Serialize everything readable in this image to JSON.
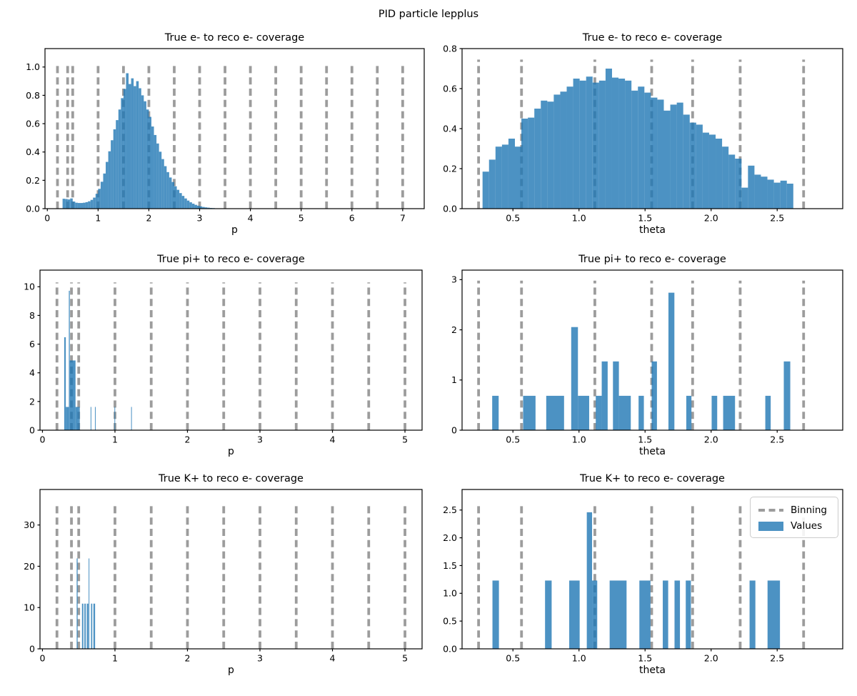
{
  "figure": {
    "suptitle": "PID particle lepplus",
    "background": "#ffffff",
    "bar_color": "#1f77b4",
    "bar_opacity": 0.8,
    "binning_color": "#9c9c9c",
    "axis_color": "#000000"
  },
  "legend": {
    "position": "upper-right of bottom-right subplot",
    "items": [
      {
        "label": "Binning",
        "swatch": "dashed-line",
        "color": "#9c9c9c"
      },
      {
        "label": "Values",
        "swatch": "filled-patch",
        "color": "#4c92c3"
      }
    ]
  },
  "chart_data": [
    {
      "type": "bar",
      "title": "True e- to reco e- coverage",
      "xlabel": "p",
      "xlim": [
        -0.046,
        7.424
      ],
      "ylim": [
        0,
        1.13
      ],
      "xticks": [
        [
          0,
          "0"
        ],
        [
          1,
          "1"
        ],
        [
          2,
          "2"
        ],
        [
          3,
          "3"
        ],
        [
          4,
          "4"
        ],
        [
          5,
          "5"
        ],
        [
          6,
          "6"
        ],
        [
          7,
          "7"
        ]
      ],
      "yticks": [
        [
          0,
          "0.0"
        ],
        [
          0.2,
          "0.2"
        ],
        [
          0.4,
          "0.4"
        ],
        [
          0.6,
          "0.6"
        ],
        [
          0.8,
          "0.8"
        ],
        [
          1.0,
          "1.0"
        ]
      ],
      "binning": [
        0.2,
        0.4,
        0.5,
        1.0,
        1.5,
        2.0,
        2.5,
        3.0,
        3.5,
        4.0,
        4.5,
        5.0,
        5.5,
        6.0,
        6.5,
        7.0
      ],
      "dash_top": 1.02,
      "grid": false,
      "bars": {
        "mode": "hist",
        "start": 0.3,
        "binwidth": 0.05,
        "heights": [
          0.07,
          0.068,
          0.065,
          0.072,
          0.05,
          0.042,
          0.04,
          0.04,
          0.042,
          0.046,
          0.052,
          0.062,
          0.078,
          0.105,
          0.14,
          0.19,
          0.248,
          0.33,
          0.405,
          0.483,
          0.56,
          0.625,
          0.7,
          0.78,
          0.845,
          0.956,
          0.88,
          0.92,
          0.865,
          0.9,
          0.85,
          0.8,
          0.758,
          0.7,
          0.648,
          0.58,
          0.52,
          0.46,
          0.402,
          0.35,
          0.3,
          0.258,
          0.22,
          0.188,
          0.158,
          0.133,
          0.11,
          0.09,
          0.072,
          0.057,
          0.045,
          0.035,
          0.027,
          0.021,
          0.016,
          0.012,
          0.009,
          0.007,
          0.005,
          0.004
        ]
      }
    },
    {
      "type": "bar",
      "title": "True e- to reco e- coverage",
      "xlabel": "theta",
      "xlim": [
        0.115,
        2.996
      ],
      "ylim": [
        0,
        0.8
      ],
      "xticks": [
        [
          0.5,
          "0.5"
        ],
        [
          1.0,
          "1.0"
        ],
        [
          1.5,
          "1.5"
        ],
        [
          2.0,
          "2.0"
        ],
        [
          2.5,
          "2.5"
        ]
      ],
      "yticks": [
        [
          0,
          "0.0"
        ],
        [
          0.2,
          "0.2"
        ],
        [
          0.4,
          "0.4"
        ],
        [
          0.6,
          "0.6"
        ],
        [
          0.8,
          "0.8"
        ]
      ],
      "binning": [
        0.24,
        0.565,
        1.12,
        1.55,
        1.86,
        2.22,
        2.7
      ],
      "dash_top": 0.745,
      "grid": false,
      "bars": {
        "mode": "hist",
        "start": 0.27,
        "binwidth": 0.049,
        "heights": [
          0.185,
          0.245,
          0.31,
          0.32,
          0.35,
          0.31,
          0.45,
          0.455,
          0.5,
          0.54,
          0.535,
          0.57,
          0.585,
          0.61,
          0.65,
          0.64,
          0.66,
          0.63,
          0.64,
          0.7,
          0.655,
          0.65,
          0.64,
          0.59,
          0.61,
          0.58,
          0.555,
          0.545,
          0.49,
          0.52,
          0.53,
          0.47,
          0.43,
          0.42,
          0.38,
          0.37,
          0.35,
          0.31,
          0.27,
          0.25,
          0.105,
          0.215,
          0.17,
          0.16,
          0.145,
          0.13,
          0.14,
          0.125
        ]
      }
    },
    {
      "type": "bar",
      "title": "True pi+ to reco e- coverage",
      "xlabel": "p",
      "xlim": [
        -0.034,
        5.236
      ],
      "ylim": [
        0,
        11.16
      ],
      "xticks": [
        [
          0,
          "0"
        ],
        [
          1,
          "1"
        ],
        [
          2,
          "2"
        ],
        [
          3,
          "3"
        ],
        [
          4,
          "4"
        ],
        [
          5,
          "5"
        ]
      ],
      "yticks": [
        [
          0,
          "0"
        ],
        [
          2,
          "2"
        ],
        [
          4,
          "4"
        ],
        [
          6,
          "6"
        ],
        [
          8,
          "8"
        ],
        [
          10,
          "10"
        ]
      ],
      "binning": [
        0.2,
        0.4,
        0.5,
        1.0,
        1.5,
        2.0,
        2.5,
        3.0,
        3.5,
        4.0,
        4.5,
        5.0
      ],
      "dash_top": 10.3,
      "grid": false,
      "bars": {
        "mode": "list",
        "items": [
          [
            0.3,
            0.022,
            6.48
          ],
          [
            0.322,
            0.042,
            1.62
          ],
          [
            0.364,
            0.013,
            9.72
          ],
          [
            0.377,
            0.079,
            4.86
          ],
          [
            0.456,
            0.045,
            1.62
          ],
          [
            0.501,
            0.014,
            1.62
          ],
          [
            0.664,
            0.01,
            1.62
          ],
          [
            0.724,
            0.01,
            1.62
          ],
          [
            0.993,
            0.01,
            1.62
          ],
          [
            1.223,
            0.01,
            1.62
          ]
        ]
      }
    },
    {
      "type": "bar",
      "title": "True pi+ to reco e- coverage",
      "xlabel": "theta",
      "xlim": [
        0.115,
        2.996
      ],
      "ylim": [
        0,
        3.19
      ],
      "xticks": [
        [
          0.5,
          "0.5"
        ],
        [
          1.0,
          "1.0"
        ],
        [
          1.5,
          "1.5"
        ],
        [
          2.0,
          "2.0"
        ],
        [
          2.5,
          "2.5"
        ]
      ],
      "yticks": [
        [
          0,
          "0"
        ],
        [
          1,
          "1"
        ],
        [
          2,
          "2"
        ],
        [
          3,
          "3"
        ]
      ],
      "binning": [
        0.24,
        0.565,
        1.12,
        1.55,
        1.86,
        2.22,
        2.7
      ],
      "dash_top": 2.98,
      "grid": false,
      "bars": {
        "mode": "list",
        "items": [
          [
            0.343,
            0.049,
            0.685
          ],
          [
            0.577,
            0.094,
            0.685
          ],
          [
            0.752,
            0.135,
            0.685
          ],
          [
            0.941,
            0.051,
            2.055
          ],
          [
            0.992,
            0.085,
            0.685
          ],
          [
            1.127,
            0.045,
            0.685
          ],
          [
            1.172,
            0.045,
            1.37
          ],
          [
            1.257,
            0.045,
            1.37
          ],
          [
            1.302,
            0.09,
            0.685
          ],
          [
            1.451,
            0.04,
            0.685
          ],
          [
            1.55,
            0.04,
            1.37
          ],
          [
            1.677,
            0.045,
            2.74
          ],
          [
            1.812,
            0.039,
            0.685
          ],
          [
            2.004,
            0.042,
            0.685
          ],
          [
            2.091,
            0.09,
            0.685
          ],
          [
            2.41,
            0.041,
            0.685
          ],
          [
            2.55,
            0.049,
            1.37
          ]
        ]
      }
    },
    {
      "type": "bar",
      "title": "True K+ to reco e- coverage",
      "xlabel": "p",
      "xlim": [
        -0.034,
        5.236
      ],
      "ylim": [
        0,
        38.6
      ],
      "xticks": [
        [
          0,
          "0"
        ],
        [
          1,
          "1"
        ],
        [
          2,
          "2"
        ],
        [
          3,
          "3"
        ],
        [
          4,
          "4"
        ],
        [
          5,
          "5"
        ]
      ],
      "yticks": [
        [
          0,
          "0"
        ],
        [
          10,
          "10"
        ],
        [
          20,
          "20"
        ],
        [
          30,
          "30"
        ]
      ],
      "binning": [
        0.2,
        0.4,
        0.5,
        1.0,
        1.5,
        2.0,
        2.5,
        3.0,
        3.5,
        4.0,
        4.5,
        5.0
      ],
      "dash_top": 35.4,
      "grid": false,
      "bars": {
        "mode": "list",
        "items": [
          [
            0.472,
            0.013,
            21.9
          ],
          [
            0.545,
            0.019,
            10.95
          ],
          [
            0.578,
            0.019,
            10.95
          ],
          [
            0.611,
            0.023,
            10.95
          ],
          [
            0.637,
            0.01,
            21.9
          ],
          [
            0.67,
            0.017,
            10.95
          ],
          [
            0.703,
            0.023,
            10.95
          ]
        ]
      }
    },
    {
      "type": "bar",
      "title": "True K+ to reco e- coverage",
      "xlabel": "theta",
      "xlim": [
        0.115,
        2.996
      ],
      "ylim": [
        0,
        2.87
      ],
      "xticks": [
        [
          0.5,
          "0.5"
        ],
        [
          1.0,
          "1.0"
        ],
        [
          1.5,
          "1.5"
        ],
        [
          2.0,
          "2.0"
        ],
        [
          2.5,
          "2.5"
        ]
      ],
      "yticks": [
        [
          0,
          "0.0"
        ],
        [
          0.5,
          "0.5"
        ],
        [
          1.0,
          "1.0"
        ],
        [
          1.5,
          "1.5"
        ],
        [
          2.0,
          "2.0"
        ],
        [
          2.5,
          "2.5"
        ]
      ],
      "binning": [
        0.24,
        0.565,
        1.12,
        1.55,
        1.86,
        2.22,
        2.7
      ],
      "dash_top": 2.62,
      "grid": false,
      "has_legend": true,
      "bars": {
        "mode": "list",
        "items": [
          [
            0.345,
            0.049,
            1.23
          ],
          [
            0.743,
            0.05,
            1.23
          ],
          [
            0.926,
            0.079,
            1.23
          ],
          [
            1.059,
            0.04,
            2.46
          ],
          [
            1.099,
            0.039,
            1.23
          ],
          [
            1.232,
            0.128,
            1.23
          ],
          [
            1.457,
            0.084,
            1.23
          ],
          [
            1.634,
            0.041,
            1.23
          ],
          [
            1.723,
            0.041,
            1.23
          ],
          [
            1.808,
            0.039,
            1.23
          ],
          [
            2.291,
            0.044,
            1.23
          ],
          [
            2.427,
            0.094,
            1.23
          ]
        ]
      }
    }
  ]
}
